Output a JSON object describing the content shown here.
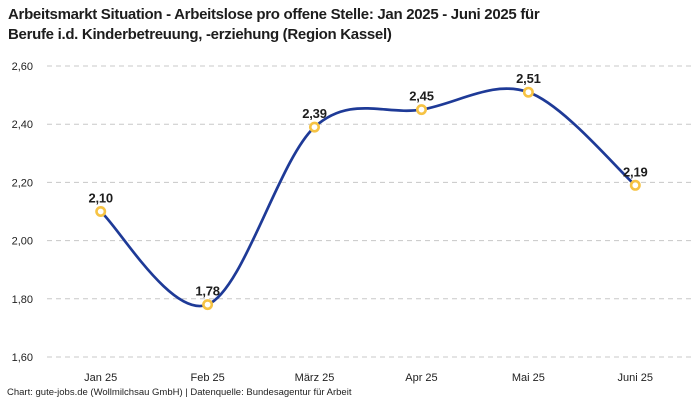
{
  "header": {
    "title_lines": [
      "Arbeitsmarkt Situation - Arbeitslose pro offene Stelle: Jan 2025 - Juni 2025 für",
      "Berufe i.d. Kinderbetreuung, -erziehung (Region Kassel)"
    ]
  },
  "footer": {
    "credit": "Chart: gute-jobs.de (Wollmilchsau GmbH) | Datenquelle: Bundesagentur für Arbeit"
  },
  "chart_data": {
    "type": "line",
    "title": "Arbeitsmarkt Situation - Arbeitslose pro offene Stelle: Jan 2025 - Juni 2025 für Berufe i.d. Kinderbetreuung, -erziehung (Region Kassel)",
    "categories": [
      "Jan 25",
      "Feb 25",
      "März 25",
      "Apr 25",
      "Mai 25",
      "Juni 25"
    ],
    "values": [
      2.1,
      1.78,
      2.39,
      2.45,
      2.51,
      2.19
    ],
    "point_labels": [
      "2,10",
      "1,78",
      "2,39",
      "2,45",
      "2,51",
      "2,19"
    ],
    "ylim": [
      1.6,
      2.6
    ],
    "yticks": [
      {
        "value": 2.6,
        "label": "2,60"
      },
      {
        "value": 2.4,
        "label": "2,40"
      },
      {
        "value": 2.2,
        "label": "2,20"
      },
      {
        "value": 2.0,
        "label": "2,00"
      },
      {
        "value": 1.8,
        "label": "1,80"
      },
      {
        "value": 1.6,
        "label": "1,60"
      }
    ],
    "grid": "horizontal-dashed",
    "legend": "none",
    "xlabel": "",
    "ylabel": "",
    "colors": {
      "line": "#1e3a97",
      "marker_ring": "#f6c344",
      "marker_fill": "#ffffff",
      "grid": "#c8c8c8",
      "point_label": "#1d1d1d",
      "tick": "#222222"
    }
  }
}
